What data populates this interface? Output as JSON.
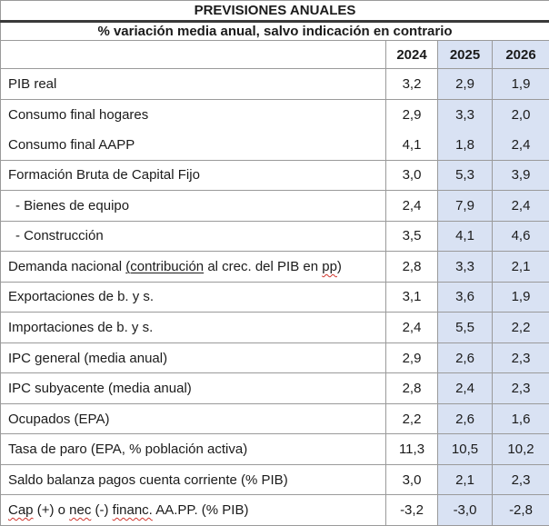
{
  "table": {
    "title": "PREVISIONES ANUALES",
    "subtitle": "% variación media anual, salvo indicación en contrario",
    "columns": [
      "2024",
      "2025",
      "2026"
    ],
    "rows": [
      {
        "parts": [
          {
            "t": "PIB real",
            "s": "plain"
          }
        ],
        "values": [
          "3,2",
          "2,9",
          "1,9"
        ]
      },
      {
        "parts": [
          {
            "t": "Consumo final hogares",
            "s": "plain"
          }
        ],
        "values": [
          "2,9",
          "3,3",
          "2,0"
        ],
        "group_with_next": true
      },
      {
        "parts": [
          {
            "t": "Consumo final AAPP",
            "s": "plain"
          }
        ],
        "values": [
          "4,1",
          "1,8",
          "2,4"
        ],
        "group_with_prev": true
      },
      {
        "parts": [
          {
            "t": "Formación Bruta de Capital Fijo",
            "s": "plain"
          }
        ],
        "values": [
          "3,0",
          "5,3",
          "3,9"
        ]
      },
      {
        "parts": [
          {
            "t": "- Bienes de equipo",
            "s": "plain"
          }
        ],
        "values": [
          "2,4",
          "7,9",
          "2,4"
        ],
        "indent": true
      },
      {
        "parts": [
          {
            "t": "- Construcción",
            "s": "plain"
          }
        ],
        "values": [
          "3,5",
          "4,1",
          "4,6"
        ],
        "indent": true
      },
      {
        "parts": [
          {
            "t": "Demanda nacional ",
            "s": "plain"
          },
          {
            "t": "(contribución",
            "s": "underline"
          },
          {
            "t": " al crec. del PIB en ",
            "s": "plain"
          },
          {
            "t": "pp",
            "s": "misspell"
          },
          {
            "t": ")",
            "s": "plain"
          }
        ],
        "values": [
          "2,8",
          "3,3",
          "2,1"
        ]
      },
      {
        "parts": [
          {
            "t": "Exportaciones de b. y s.",
            "s": "plain"
          }
        ],
        "values": [
          "3,1",
          "3,6",
          "1,9"
        ]
      },
      {
        "parts": [
          {
            "t": "Importaciones de b. y s.",
            "s": "plain"
          }
        ],
        "values": [
          "2,4",
          "5,5",
          "2,2"
        ]
      },
      {
        "parts": [
          {
            "t": "IPC general (media anual)",
            "s": "plain"
          }
        ],
        "values": [
          "2,9",
          "2,6",
          "2,3"
        ]
      },
      {
        "parts": [
          {
            "t": "IPC subyacente (media anual)",
            "s": "plain"
          }
        ],
        "values": [
          "2,8",
          "2,4",
          "2,3"
        ]
      },
      {
        "parts": [
          {
            "t": "Ocupados (EPA)",
            "s": "plain"
          }
        ],
        "values": [
          "2,2",
          "2,6",
          "1,6"
        ]
      },
      {
        "parts": [
          {
            "t": "Tasa de paro (EPA, % población activa)",
            "s": "plain"
          }
        ],
        "values": [
          "11,3",
          "10,5",
          "10,2"
        ]
      },
      {
        "parts": [
          {
            "t": "Saldo balanza pagos cuenta corriente (% PIB)",
            "s": "plain"
          }
        ],
        "values": [
          "3,0",
          "2,1",
          "2,3"
        ]
      },
      {
        "parts": [
          {
            "t": "Cap",
            "s": "misspell"
          },
          {
            "t": " (+) o ",
            "s": "plain"
          },
          {
            "t": "nec",
            "s": "misspell"
          },
          {
            "t": " (-) ",
            "s": "plain"
          },
          {
            "t": "financ.",
            "s": "misspell"
          },
          {
            "t": " AA.PP. (% PIB)",
            "s": "plain"
          }
        ],
        "values": [
          "-3,2",
          "-3,0",
          "-2,8"
        ]
      }
    ]
  },
  "colors": {
    "highlight_column_bg": "#d9e2f3",
    "grid_border": "#9a9a9a",
    "title_separator": "#3a3a3a",
    "text": "#1b1b1b",
    "misspell_underline": "#d0342c"
  }
}
